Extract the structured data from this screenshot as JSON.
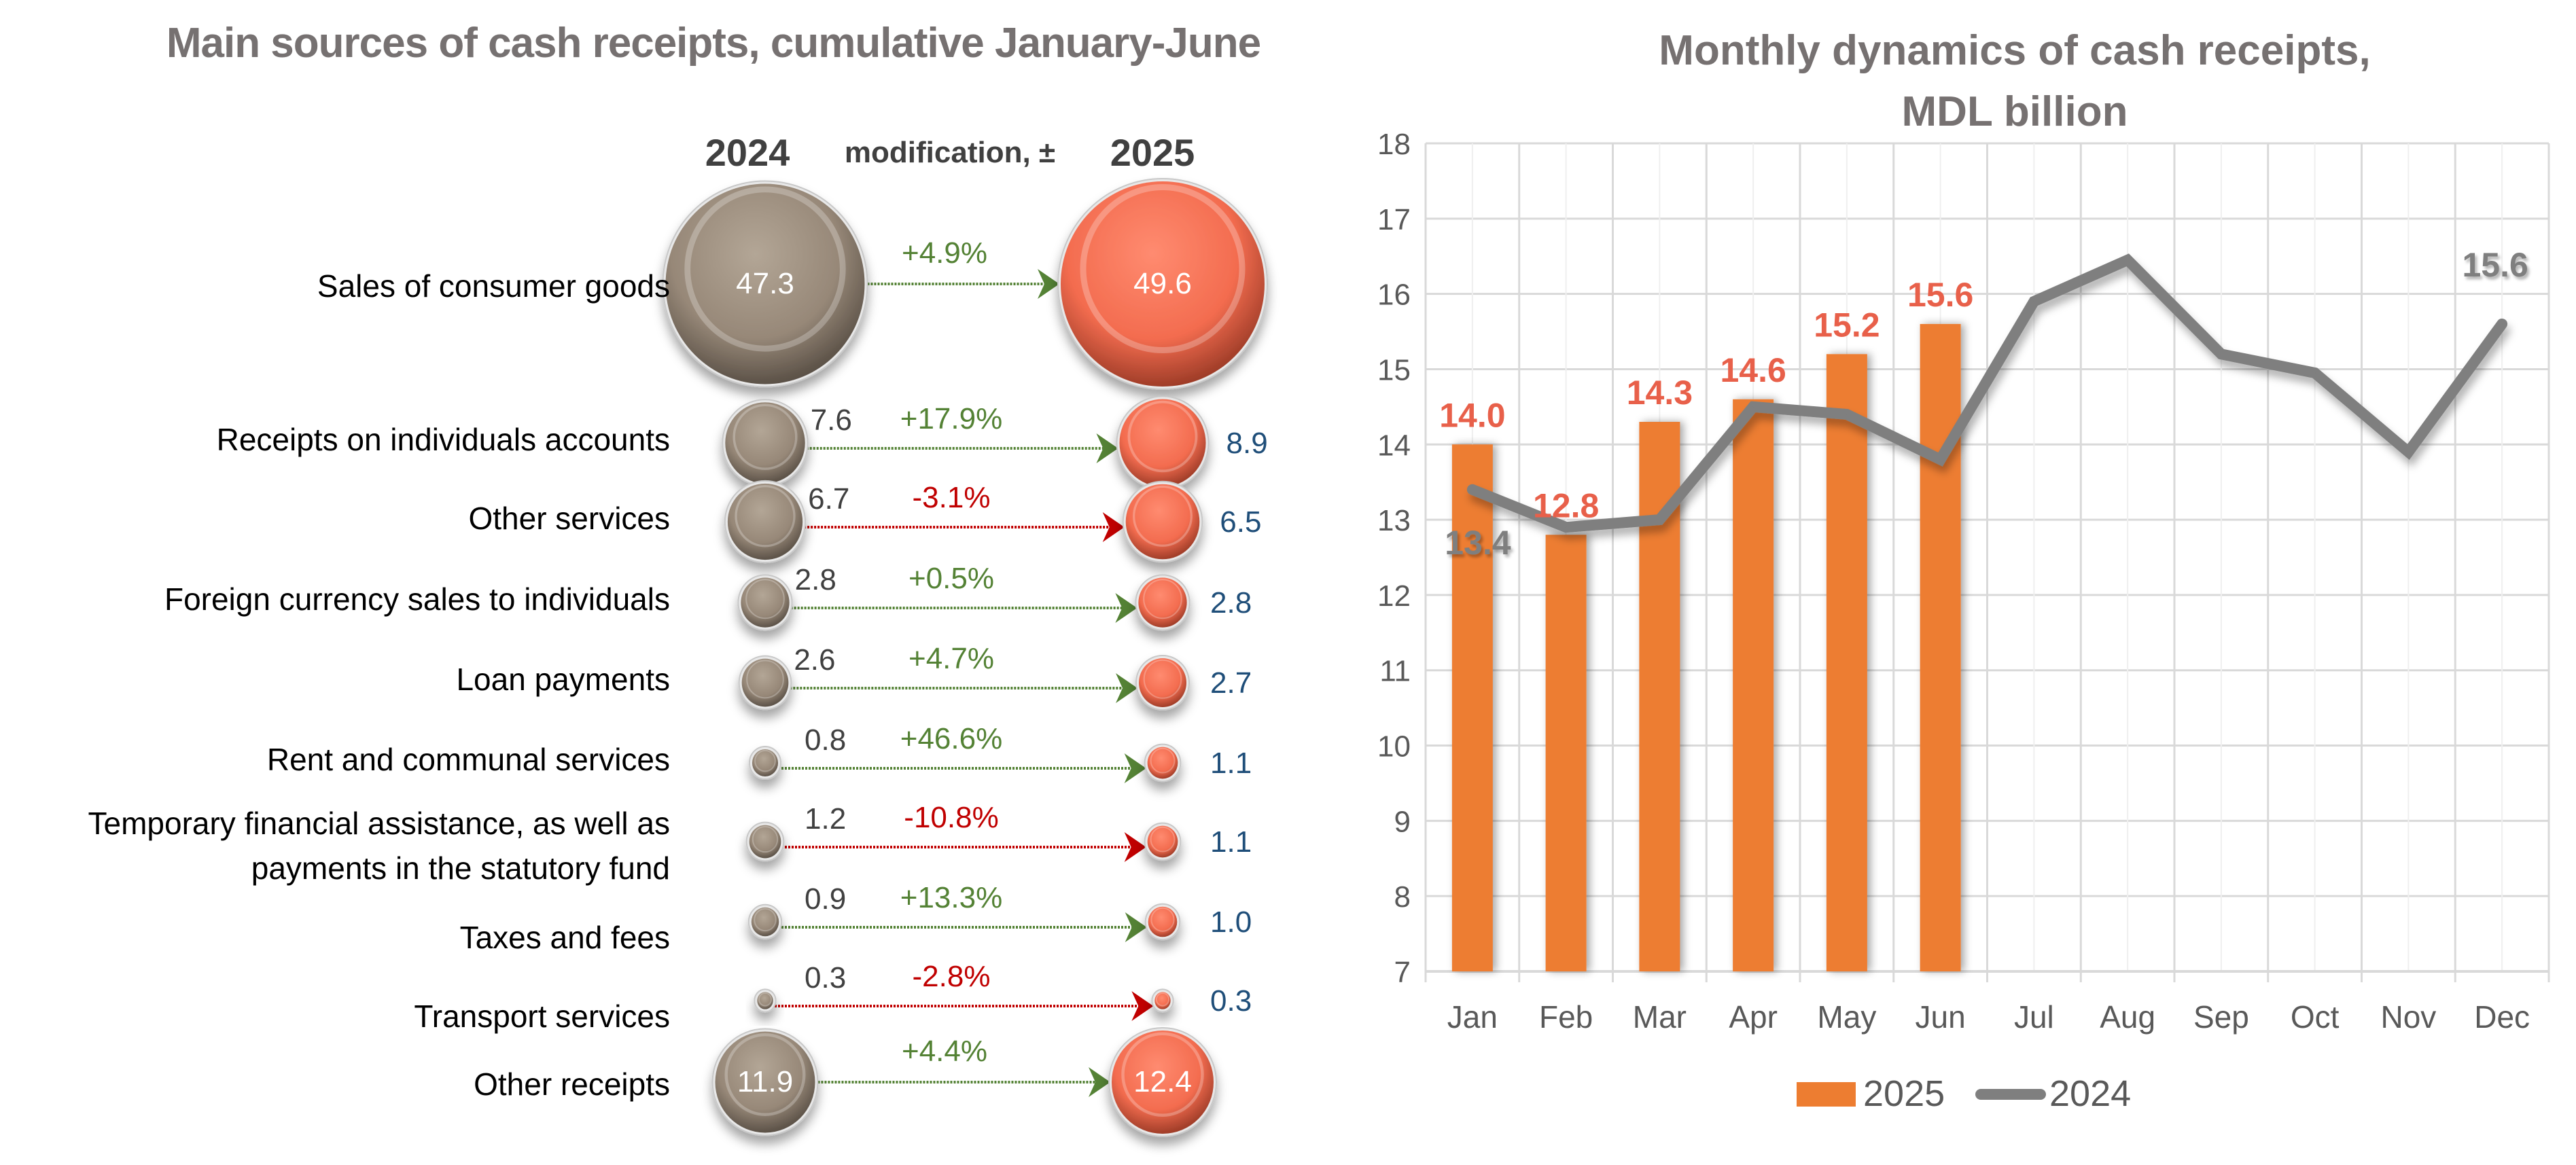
{
  "left_panel": {
    "title": "Main sources of cash receipts, cumulative January-June",
    "header": {
      "year_prev": "2024",
      "modification": "modification, ±",
      "year_curr": "2025"
    },
    "rows": [
      {
        "label": "Sales of consumer goods",
        "label_line2": "",
        "v2024": "47.3",
        "v2025": "49.6",
        "change": "+4.9%",
        "direction": "up",
        "value_2024": 47.3,
        "value_2025": 49.6
      },
      {
        "label": "Receipts on individuals accounts",
        "label_line2": "",
        "v2024": "7.6",
        "v2025": "8.9",
        "change": "+17.9%",
        "direction": "up",
        "value_2024": 7.6,
        "value_2025": 8.9
      },
      {
        "label": "Other services",
        "label_line2": "",
        "v2024": "6.7",
        "v2025": "6.5",
        "change": "-3.1%",
        "direction": "down",
        "value_2024": 6.7,
        "value_2025": 6.5
      },
      {
        "label": "Foreign currency sales to individuals",
        "label_line2": "",
        "v2024": "2.8",
        "v2025": "2.8",
        "change": "+0.5%",
        "direction": "up",
        "value_2024": 2.8,
        "value_2025": 2.8
      },
      {
        "label": "Loan payments",
        "label_line2": "",
        "v2024": "2.6",
        "v2025": "2.7",
        "change": "+4.7%",
        "direction": "up",
        "value_2024": 2.6,
        "value_2025": 2.7
      },
      {
        "label": "Rent and communal services",
        "label_line2": "",
        "v2024": "0.8",
        "v2025": "1.1",
        "change": "+46.6%",
        "direction": "up",
        "value_2024": 0.8,
        "value_2025": 1.1
      },
      {
        "label": "Temporary financial assistance, as well as",
        "label_line2": "payments in the statutory fund",
        "v2024": "1.2",
        "v2025": "1.1",
        "change": "-10.8%",
        "direction": "down",
        "value_2024": 1.2,
        "value_2025": 1.1
      },
      {
        "label": "Taxes and fees",
        "label_line2": "",
        "v2024": "0.9",
        "v2025": "1.0",
        "change": "+13.3%",
        "direction": "up",
        "value_2024": 0.9,
        "value_2025": 1.0
      },
      {
        "label": "Transport services",
        "label_line2": "",
        "v2024": "0.3",
        "v2025": "0.3",
        "change": "-2.8%",
        "direction": "down",
        "value_2024": 0.3,
        "value_2025": 0.3
      },
      {
        "label": "Other receipts",
        "label_line2": "",
        "v2024": "11.9",
        "v2025": "12.4",
        "change": "+4.4%",
        "direction": "up",
        "value_2024": 11.9,
        "value_2025": 12.4
      }
    ],
    "colors": {
      "bubble_2024": "#978878",
      "bubble_2025": "#F36C4F",
      "up": "#548235",
      "down": "#C00000",
      "value_2025_text": "#1F4E79"
    }
  },
  "chart_data": {
    "type": "bar+line",
    "title": "Monthly dynamics of cash receipts,",
    "subtitle": "MDL billion",
    "categories": [
      "Jan",
      "Feb",
      "Mar",
      "Apr",
      "May",
      "Jun",
      "Jul",
      "Aug",
      "Sep",
      "Oct",
      "Nov",
      "Dec"
    ],
    "series": [
      {
        "name": "2025",
        "type": "bar",
        "color": "#ED7D31",
        "label_color": "#E8604A",
        "values": [
          14.0,
          12.8,
          14.3,
          14.6,
          15.2,
          15.6,
          null,
          null,
          null,
          null,
          null,
          null
        ],
        "labels": [
          "14.0",
          "12.8",
          "14.3",
          "14.6",
          "15.2",
          "15.6"
        ]
      },
      {
        "name": "2024",
        "type": "line",
        "color": "#7F7F7F",
        "label_color": "#7F7F7F",
        "values": [
          13.4,
          12.9,
          13.0,
          14.5,
          14.4,
          13.8,
          15.9,
          16.45,
          15.2,
          14.95,
          13.9,
          15.6
        ],
        "point_labels": {
          "0": "13.4",
          "11": "15.6"
        }
      }
    ],
    "yaxis": {
      "min": 7,
      "max": 18,
      "step": 1,
      "ticks": [
        "7",
        "8",
        "9",
        "10",
        "11",
        "12",
        "13",
        "14",
        "15",
        "16",
        "17",
        "18"
      ]
    },
    "grid": true,
    "legend": {
      "position": "bottom",
      "entries": [
        "2025",
        "2024"
      ]
    }
  }
}
